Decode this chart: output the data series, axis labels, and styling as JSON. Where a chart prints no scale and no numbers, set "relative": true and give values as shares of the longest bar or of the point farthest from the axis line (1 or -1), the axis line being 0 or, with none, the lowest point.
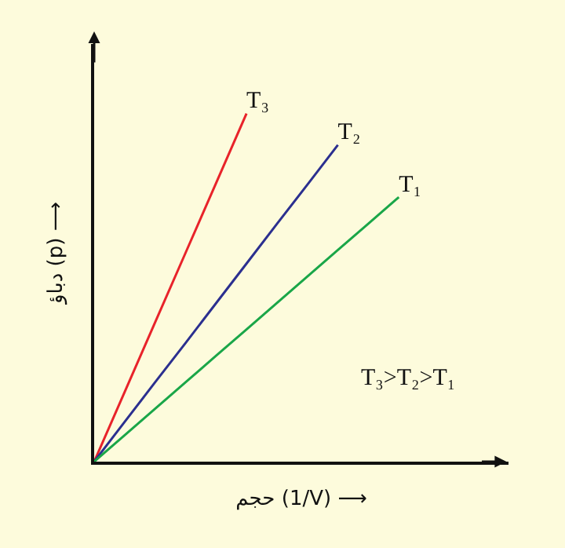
{
  "chart_data": {
    "type": "line",
    "relative": true,
    "xlabel": "حجم (1/V) ⟶",
    "ylabel": "دباؤ (p) ⟶",
    "annotations": [
      "T₃>T₂>T₁"
    ],
    "marker": "none",
    "line_style": "solid",
    "grid": false,
    "legend": false,
    "categories": [
      null,
      null,
      null,
      null,
      null,
      null,
      null,
      null,
      null,
      null,
      null
    ],
    "series": [
      {
        "name": "T₃",
        "color": "#e8232a",
        "values": [
          0,
          0.2,
          0.4,
          0.6,
          0.8,
          1,
          null,
          null,
          null,
          null,
          null
        ]
      },
      {
        "name": "T₂",
        "color": "#2b2f8f",
        "values": [
          0,
          0.114,
          0.228,
          0.341,
          0.455,
          0.569,
          0.683,
          0.796,
          0.91,
          null,
          null
        ]
      },
      {
        "name": "T₁",
        "color": "#1aa648",
        "values": [
          0,
          0.076,
          0.152,
          0.228,
          0.304,
          0.38,
          0.456,
          0.532,
          0.608,
          0.684,
          0.76
        ]
      }
    ]
  }
}
